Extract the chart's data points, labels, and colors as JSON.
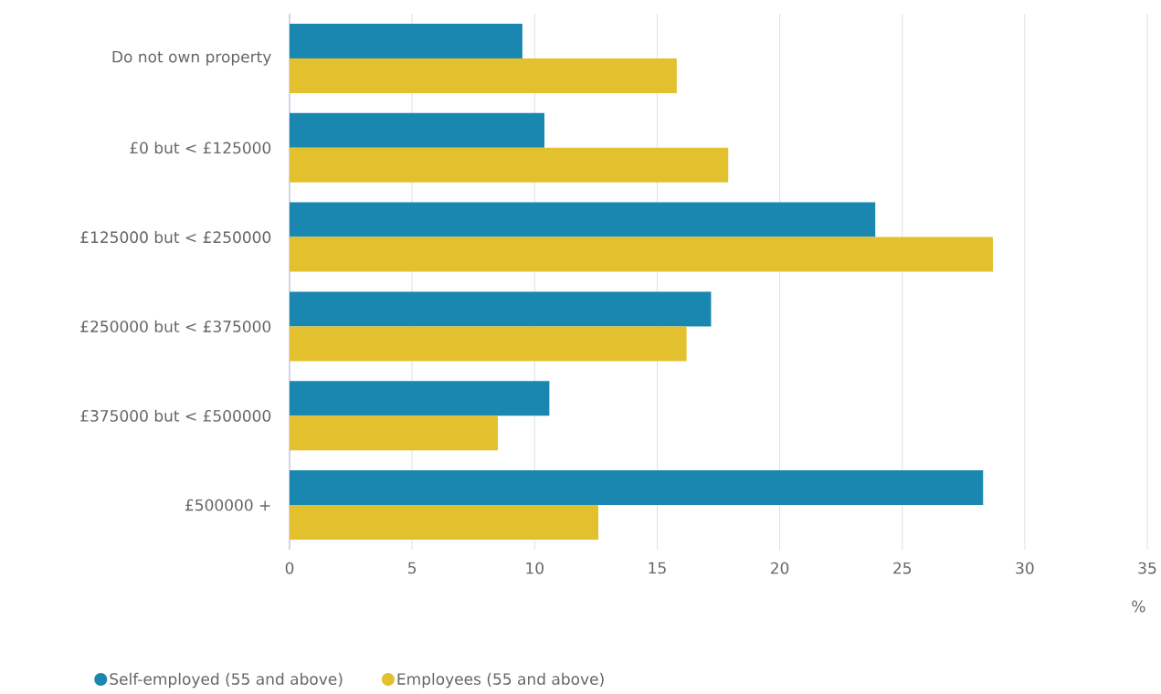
{
  "chart_data": {
    "type": "bar",
    "orientation": "horizontal",
    "xlabel": "%",
    "categories": [
      "Do not own property",
      "£0 but < £125000",
      "£125000 but < £250000",
      "£250000 but < £375000",
      "£375000 but < £500000",
      "£500000 +"
    ],
    "series": [
      {
        "name": "Self-employed (55 and above)",
        "color": "#1a87b0",
        "values": [
          9.5,
          10.4,
          23.9,
          17.2,
          10.6,
          28.3
        ]
      },
      {
        "name": "Employees (55 and above)",
        "color": "#e3c12e",
        "values": [
          15.8,
          17.9,
          28.7,
          16.2,
          8.5,
          12.6
        ]
      }
    ],
    "xlim": [
      0,
      35
    ],
    "xticks": [
      0,
      5,
      10,
      15,
      20,
      25,
      30,
      35
    ],
    "grid": "x",
    "legend": "bottom"
  }
}
